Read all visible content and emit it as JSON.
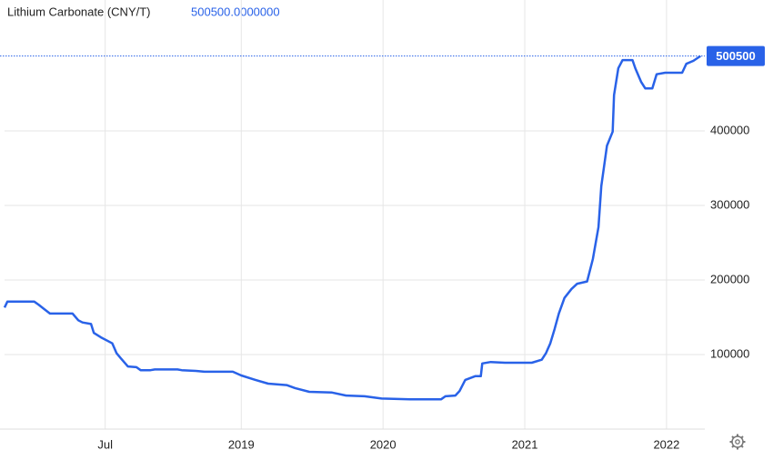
{
  "chart_data": {
    "type": "line",
    "title": "Lithium Carbonate (CNY/T)",
    "header_value": "500500.0000000",
    "current_value": 500500,
    "color": "#2962e8",
    "grid": true,
    "xlim": [
      2017.33,
      2022.27
    ],
    "xticks": [
      {
        "value": 2018.04,
        "label": "Jul"
      },
      2019,
      2020,
      2021,
      2022
    ],
    "ylim": [
      0,
      539000
    ],
    "yticks": [
      100000,
      200000,
      300000,
      400000
    ],
    "x": [
      2017.33,
      2017.35,
      2017.54,
      2017.57,
      2017.61,
      2017.65,
      2017.81,
      2017.85,
      2017.88,
      2017.94,
      2017.96,
      2018.01,
      2018.06,
      2018.09,
      2018.12,
      2018.15,
      2018.2,
      2018.26,
      2018.29,
      2018.36,
      2018.39,
      2018.55,
      2018.58,
      2018.68,
      2018.74,
      2018.94,
      2019.0,
      2019.1,
      2019.19,
      2019.32,
      2019.38,
      2019.48,
      2019.64,
      2019.74,
      2019.87,
      2019.99,
      2020.19,
      2020.41,
      2020.44,
      2020.51,
      2020.54,
      2020.58,
      2020.65,
      2020.69,
      2020.7,
      2020.76,
      2020.86,
      2021.05,
      2021.12,
      2021.15,
      2021.18,
      2021.21,
      2021.24,
      2021.28,
      2021.33,
      2021.37,
      2021.44,
      2021.48,
      2021.52,
      2021.54,
      2021.58,
      2021.62,
      2021.63,
      2021.66,
      2021.69,
      2021.76,
      2021.78,
      2021.82,
      2021.85,
      2021.9,
      2021.93,
      2021.99,
      2022.11,
      2022.14,
      2022.19,
      2022.24
    ],
    "series": [
      {
        "name": "Lithium Carbonate",
        "color": "#2962e8",
        "values": [
          163000,
          171000,
          171000,
          167000,
          161000,
          155000,
          155000,
          146000,
          143000,
          141000,
          129000,
          123000,
          118000,
          115000,
          102000,
          95000,
          84000,
          83000,
          79000,
          79000,
          80000,
          80000,
          79000,
          78000,
          77000,
          77000,
          72000,
          66000,
          61000,
          59000,
          55000,
          50000,
          49000,
          45000,
          44000,
          41000,
          40000,
          40000,
          44000,
          45000,
          51000,
          66000,
          71000,
          71000,
          88000,
          90000,
          89000,
          89000,
          93000,
          102000,
          115000,
          134000,
          155000,
          176000,
          188000,
          195000,
          198000,
          228000,
          271000,
          326000,
          380000,
          399000,
          448000,
          484000,
          495000,
          495000,
          484000,
          466000,
          457000,
          457000,
          476000,
          478000,
          478000,
          490000,
          494000,
          500500
        ]
      }
    ]
  }
}
